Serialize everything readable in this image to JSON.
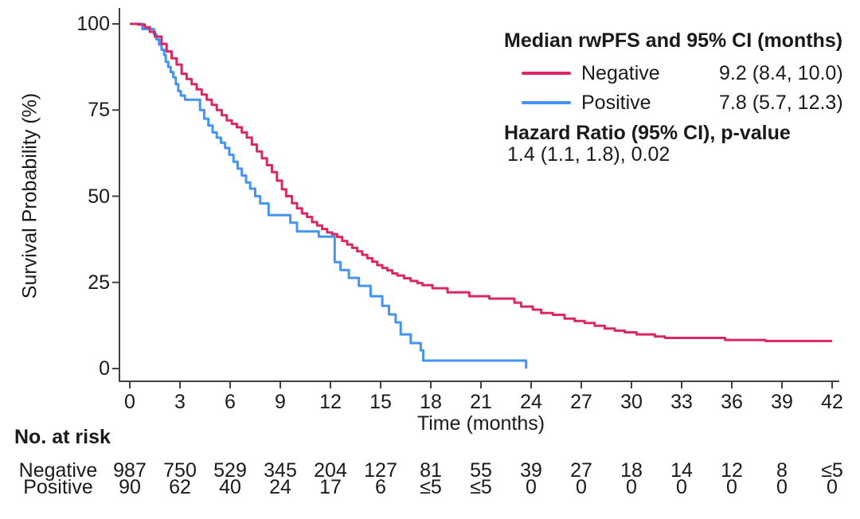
{
  "chart_data": {
    "type": "line",
    "subtype": "kaplan-meier-step",
    "title": "",
    "xlabel": "Time (months)",
    "ylabel": "Survival Probability (%)",
    "xlim": [
      0,
      42
    ],
    "ylim": [
      0,
      100
    ],
    "xticks": [
      0,
      3,
      6,
      9,
      12,
      15,
      18,
      21,
      24,
      27,
      30,
      33,
      36,
      39,
      42
    ],
    "yticks": [
      0,
      25,
      50,
      75,
      100
    ],
    "grid": false,
    "legend_position": "top-right",
    "axis_color": "#404040",
    "text_color": "#1a1a1a",
    "legend": {
      "title": "Median rwPFS and 95% CI (months)",
      "hr_title": "Hazard Ratio (95% CI), p-value",
      "hr_value": "1.4 (1.1, 1.8), 0.02"
    },
    "series": [
      {
        "name": "Negative",
        "color": "#DA2862",
        "median": "9.2 (8.4, 10.0)",
        "steps": [
          [
            0,
            100
          ],
          [
            0.5,
            99.8
          ],
          [
            0.9,
            99
          ],
          [
            1.2,
            97.7
          ],
          [
            1.5,
            96.3
          ],
          [
            1.9,
            94.2
          ],
          [
            2.2,
            92
          ],
          [
            2.5,
            90
          ],
          [
            2.8,
            88.2
          ],
          [
            3.1,
            85.5
          ],
          [
            3.4,
            84
          ],
          [
            3.7,
            82.5
          ],
          [
            4.0,
            81
          ],
          [
            4.3,
            79.5
          ],
          [
            4.6,
            78
          ],
          [
            4.9,
            76.5
          ],
          [
            5.2,
            75
          ],
          [
            5.5,
            73.5
          ],
          [
            5.8,
            72
          ],
          [
            6.1,
            71
          ],
          [
            6.4,
            70
          ],
          [
            6.7,
            68.5
          ],
          [
            7.0,
            67
          ],
          [
            7.3,
            65
          ],
          [
            7.6,
            63
          ],
          [
            7.9,
            61
          ],
          [
            8.2,
            59
          ],
          [
            8.5,
            57
          ],
          [
            8.8,
            54.5
          ],
          [
            9.1,
            52
          ],
          [
            9.35,
            50
          ],
          [
            9.7,
            48
          ],
          [
            10.0,
            46.5
          ],
          [
            10.3,
            45
          ],
          [
            10.6,
            44
          ],
          [
            10.9,
            42.5
          ],
          [
            11.2,
            41.5
          ],
          [
            11.5,
            40.5
          ],
          [
            11.8,
            39.5
          ],
          [
            12.1,
            39
          ],
          [
            12.4,
            38.2
          ],
          [
            12.7,
            37
          ],
          [
            13.0,
            36
          ],
          [
            13.3,
            35
          ],
          [
            13.6,
            34
          ],
          [
            13.9,
            33
          ],
          [
            14.2,
            32
          ],
          [
            14.5,
            31
          ],
          [
            14.8,
            30
          ],
          [
            15.1,
            29.2
          ],
          [
            15.4,
            28.5
          ],
          [
            15.7,
            27.6
          ],
          [
            16.0,
            27
          ],
          [
            16.4,
            26.2
          ],
          [
            16.8,
            25.4
          ],
          [
            17.2,
            24.8
          ],
          [
            17.5,
            24.2
          ],
          [
            18.1,
            23.3
          ],
          [
            19.0,
            22.1
          ],
          [
            20.3,
            21.0
          ],
          [
            21.5,
            20.3
          ],
          [
            23.0,
            19.1
          ],
          [
            23.4,
            18.0
          ],
          [
            24.1,
            17.1
          ],
          [
            24.6,
            16.1
          ],
          [
            25.3,
            15.6
          ],
          [
            26.0,
            14.5
          ],
          [
            26.6,
            13.8
          ],
          [
            27.2,
            13.2
          ],
          [
            27.8,
            12.4
          ],
          [
            28.4,
            11.6
          ],
          [
            29.0,
            11.0
          ],
          [
            29.6,
            10.5
          ],
          [
            30.3,
            9.9
          ],
          [
            31.4,
            9.3
          ],
          [
            32.0,
            8.9
          ],
          [
            35.6,
            8.3
          ],
          [
            38.0,
            8.0
          ],
          [
            42,
            8.0
          ]
        ]
      },
      {
        "name": "Positive",
        "color": "#4394F4",
        "median": "7.8 (5.7, 12.3)",
        "steps": [
          [
            0,
            100
          ],
          [
            0.75,
            98.5
          ],
          [
            1.45,
            97
          ],
          [
            1.6,
            95.5
          ],
          [
            1.75,
            94
          ],
          [
            1.9,
            92.5
          ],
          [
            2.05,
            91
          ],
          [
            2.15,
            89
          ],
          [
            2.3,
            87.5
          ],
          [
            2.45,
            86
          ],
          [
            2.6,
            84.5
          ],
          [
            2.75,
            82.5
          ],
          [
            2.9,
            80.5
          ],
          [
            3.05,
            79.2
          ],
          [
            3.3,
            78
          ],
          [
            4.2,
            75
          ],
          [
            4.45,
            72.5
          ],
          [
            4.7,
            70.5
          ],
          [
            4.95,
            68.5
          ],
          [
            5.2,
            67
          ],
          [
            5.45,
            65.5
          ],
          [
            5.7,
            64
          ],
          [
            5.95,
            62
          ],
          [
            6.2,
            60
          ],
          [
            6.45,
            58
          ],
          [
            6.7,
            56
          ],
          [
            6.95,
            54
          ],
          [
            7.2,
            52.2
          ],
          [
            7.5,
            50
          ],
          [
            7.8,
            47.9
          ],
          [
            8.3,
            44.5
          ],
          [
            9.6,
            42.3
          ],
          [
            10.0,
            39.8
          ],
          [
            11.3,
            38.3
          ],
          [
            12.25,
            30.9
          ],
          [
            12.6,
            28.6
          ],
          [
            13.1,
            26.3
          ],
          [
            13.7,
            24
          ],
          [
            14.4,
            21
          ],
          [
            15.1,
            18.2
          ],
          [
            15.5,
            15.7
          ],
          [
            15.9,
            13.4
          ],
          [
            16.2,
            9.9
          ],
          [
            16.8,
            7.4
          ],
          [
            17.4,
            5.3
          ],
          [
            17.55,
            2.3
          ],
          [
            23.7,
            0
          ]
        ]
      }
    ],
    "risk_table": {
      "title": "No. at risk",
      "rows": [
        {
          "label": "Negative",
          "values": [
            "987",
            "750",
            "529",
            "345",
            "204",
            "127",
            "81",
            "55",
            "39",
            "27",
            "18",
            "14",
            "12",
            "8",
            "≤5"
          ]
        },
        {
          "label": "Positive",
          "values": [
            "90",
            "62",
            "40",
            "24",
            "17",
            "6",
            "≤5",
            "≤5",
            "0",
            "0",
            "0",
            "0",
            "0",
            "0",
            "0"
          ]
        }
      ]
    }
  }
}
